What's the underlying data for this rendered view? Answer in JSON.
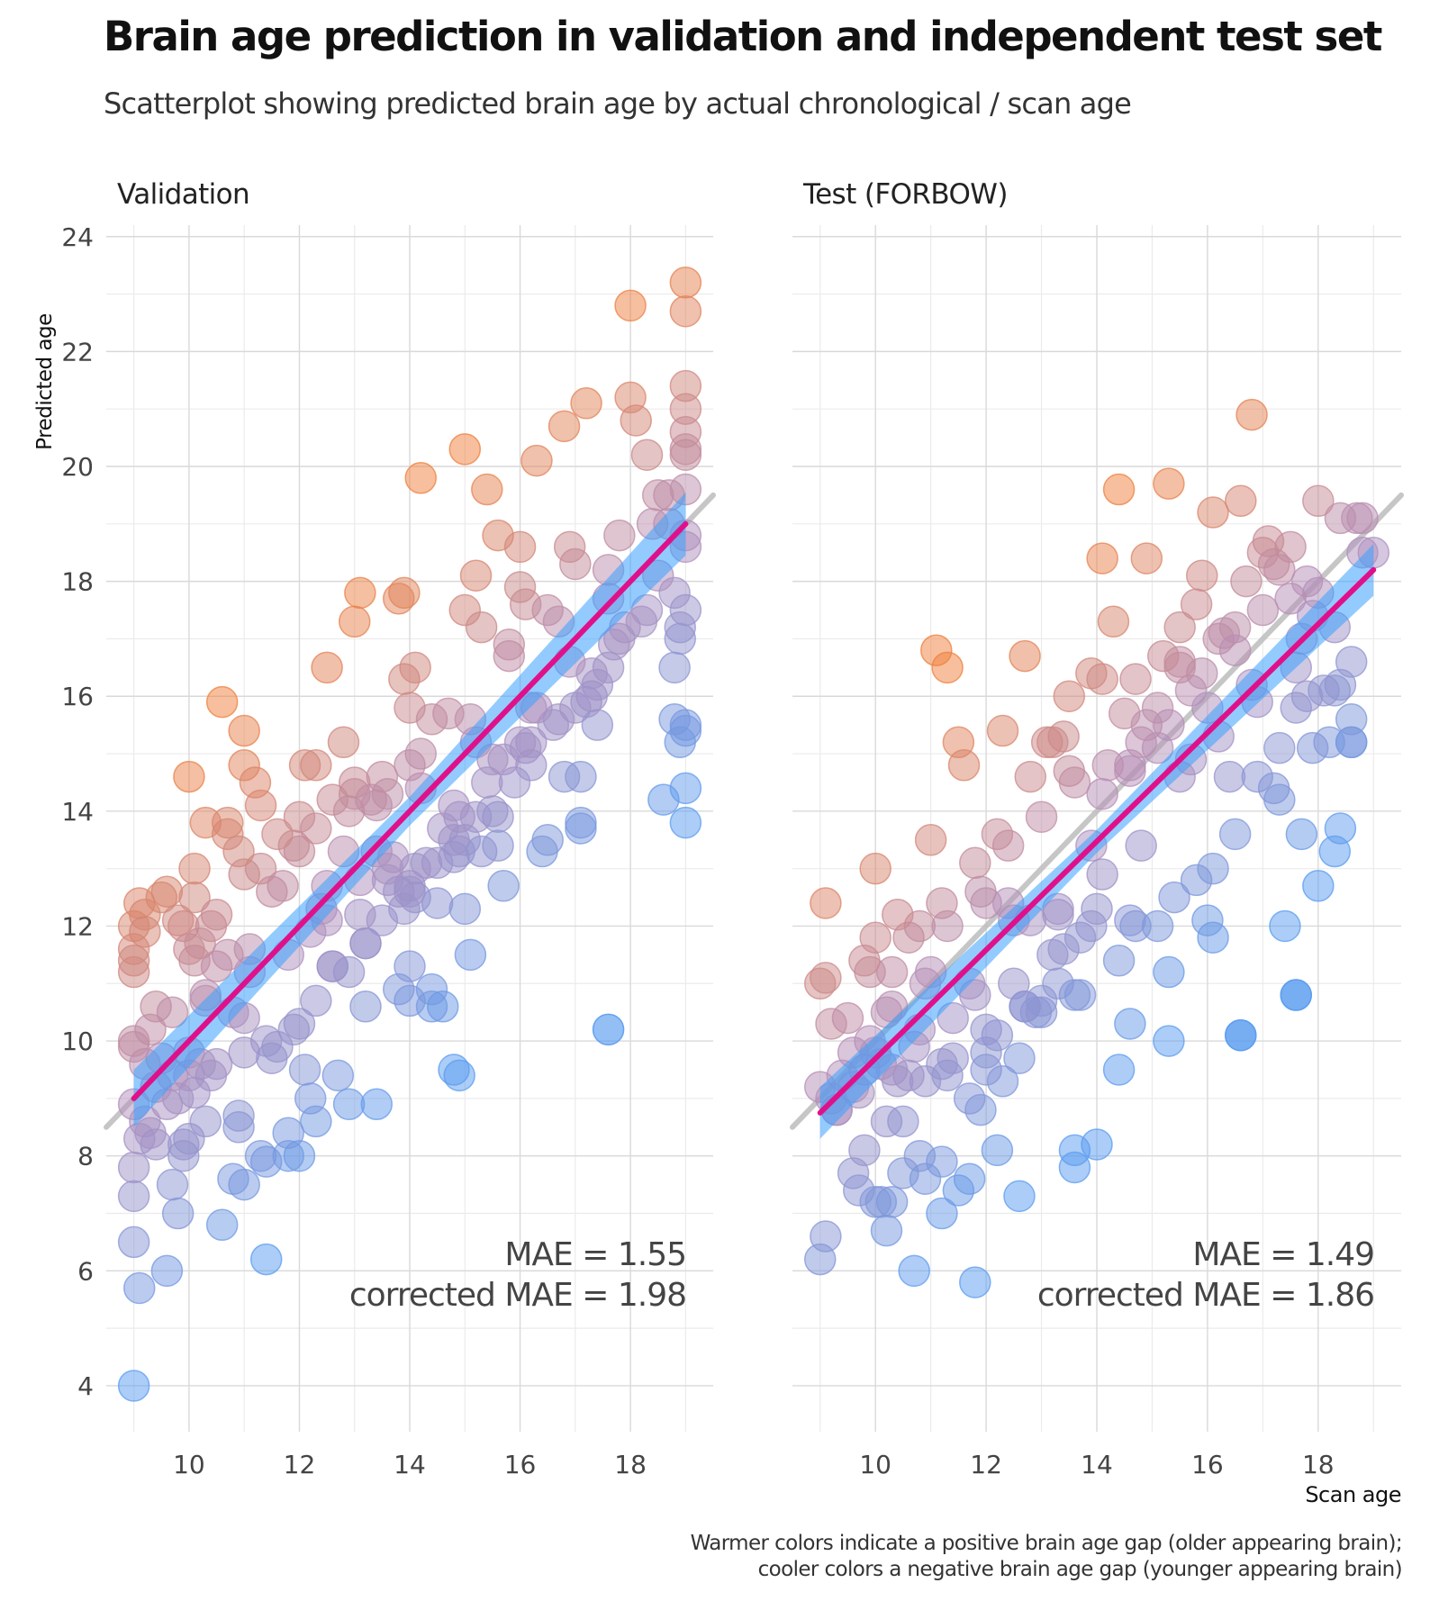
{
  "header": {
    "title": "Brain age prediction in validation and independent test set",
    "subtitle": "Scatterplot showing predicted brain age by actual chronological / scan age"
  },
  "caption": {
    "line1": "Warmer colors indicate a positive brain age gap (older appearing brain);",
    "line2": "cooler colors a negative brain age gap (younger appearing brain)"
  },
  "colors": {
    "warm": "#ef7f3c",
    "mid": "#b48fba",
    "cool": "#5a9cf0",
    "fit_line": "#e0108a",
    "ribbon": "#3aa0ff",
    "identity_line": "#bdbdbd",
    "grid": "#d9d9d9"
  },
  "chart_data": [
    {
      "type": "scatter",
      "panel": "Validation",
      "xlabel": "",
      "ylabel": "Predicted age",
      "xlim": [
        8.5,
        19.5
      ],
      "ylim": [
        3.2,
        24.2
      ],
      "x_ticks": [
        10,
        12,
        14,
        16,
        18
      ],
      "y_ticks": [
        4,
        6,
        8,
        10,
        12,
        14,
        16,
        18,
        20,
        22,
        24
      ],
      "grid": true,
      "identity_line": true,
      "fit": {
        "x": [
          9,
          19
        ],
        "y": [
          9.0,
          19.0
        ],
        "band_halfwidth": [
          0.5,
          0.25,
          0.55
        ]
      },
      "annotation": {
        "mae": "MAE = 1.55",
        "corrected": "corrected MAE = 1.98"
      },
      "x": [
        9.0,
        9.0,
        9.0,
        9.0,
        9.0,
        9.0,
        9.0,
        9.0,
        9.0,
        9.1,
        9.1,
        9.1,
        9.2,
        9.2,
        9.4,
        9.4,
        9.6,
        9.6,
        9.7,
        9.7,
        9.8,
        9.9,
        9.9,
        10.0,
        10.0,
        10.0,
        10.1,
        10.1,
        10.3,
        10.3,
        10.4,
        10.5,
        10.6,
        10.6,
        10.8,
        10.9,
        11.0,
        11.0,
        11.0,
        11.1,
        11.3,
        11.4,
        11.6,
        11.8,
        12.0,
        12.1,
        12.3,
        12.5,
        12.6,
        12.8,
        13.0,
        13.1,
        13.2,
        13.4,
        13.6,
        13.8,
        13.9,
        14.0,
        14.0,
        14.1,
        14.2,
        14.4,
        14.6,
        14.8,
        14.9,
        15.0,
        15.0,
        15.2,
        15.4,
        15.6,
        15.8,
        16.0,
        16.1,
        16.3,
        16.5,
        16.8,
        17.0,
        17.2,
        17.4,
        17.6,
        18.0,
        18.0,
        18.1,
        18.3,
        18.5,
        18.7,
        18.9,
        19.0,
        19.0,
        19.0,
        19.0,
        19.0,
        19.0,
        19.0,
        19.0,
        9.2,
        9.4,
        9.5,
        9.8,
        10.0,
        10.2,
        10.4,
        10.8,
        11.0,
        11.4,
        11.9,
        12.0,
        12.3,
        12.6,
        12.9,
        13.2,
        13.5,
        13.9,
        14.1,
        14.5,
        14.9,
        15.2,
        15.5,
        15.9,
        16.2,
        16.6,
        17.0,
        17.3,
        17.7,
        18.2,
        18.8,
        9.6,
        10.1,
        10.5,
        11.0,
        11.5,
        12.1,
        12.7,
        13.2,
        13.8,
        14.4,
        15.0,
        15.6,
        16.2,
        16.8,
        17.4,
        18.3,
        18.9,
        9.3,
        9.9,
        10.3,
        10.9,
        11.3,
        11.8,
        12.2,
        12.9,
        13.4,
        14.0,
        14.6,
        15.1,
        15.7,
        16.4,
        17.1,
        18.6,
        18.9,
        19.0,
        19.0,
        19.0,
        12.2,
        12.5,
        13.1,
        13.7,
        14.0,
        15.0,
        15.6,
        16.5,
        17.1,
        11.5,
        12.0,
        12.6,
        13.0,
        13.4,
        14.1,
        14.8,
        15.3,
        16.2,
        17.2,
        17.8,
        10.7,
        11.2,
        11.9,
        12.3,
        13.0,
        13.9,
        14.4,
        15.5,
        16.0,
        16.9,
        18.7,
        19.0,
        9.5,
        10.1,
        10.7,
        11.3,
        12.0,
        12.8,
        13.6,
        14.2,
        15.1,
        15.8,
        16.7,
        17.6,
        18.4,
        9.0,
        9.2,
        9.8,
        10.2,
        10.5,
        11.0,
        11.7,
        12.3,
        12.9,
        13.5,
        14.0,
        14.7,
        15.3,
        16.0,
        16.9,
        17.8,
        10.0,
        10.9,
        11.6,
        12.4,
        13.3,
        14.2,
        14.8,
        15.2,
        15.7,
        16.3,
        17.6,
        18.8,
        19.0,
        19.0,
        19.0,
        18.8,
        17.1,
        14.5,
        14.8,
        14.0,
        13.6,
        11.4,
        9.0,
        9.3,
        9.7,
        10.3,
        10.7,
        11.1,
        11.8,
        12.5,
        13.1,
        13.8,
        14.3,
        14.9,
        15.4,
        16.1,
        16.7,
        17.3,
        17.9,
        18.5
      ],
      "y": [
        4.0,
        6.5,
        7.3,
        7.8,
        8.9,
        9.9,
        11.2,
        11.6,
        12.0,
        5.7,
        8.3,
        12.4,
        8.6,
        12.2,
        8.2,
        10.6,
        6.0,
        12.6,
        7.5,
        10.5,
        7.0,
        8.0,
        12.0,
        8.3,
        9.8,
        14.6,
        11.4,
        12.5,
        10.7,
        13.8,
        12.0,
        11.3,
        6.8,
        15.9,
        7.6,
        8.7,
        7.5,
        14.8,
        15.4,
        11.6,
        14.1,
        6.2,
        9.9,
        8.0,
        8.0,
        14.8,
        8.6,
        16.5,
        11.3,
        15.2,
        17.3,
        17.8,
        11.7,
        13.3,
        14.3,
        17.7,
        17.8,
        11.3,
        15.8,
        16.5,
        19.8,
        10.6,
        13.7,
        9.5,
        9.4,
        20.3,
        17.5,
        18.1,
        19.6,
        18.8,
        16.9,
        18.6,
        17.6,
        20.1,
        17.5,
        20.7,
        18.3,
        21.1,
        16.2,
        17.7,
        22.8,
        21.2,
        20.8,
        20.2,
        19.5,
        19.0,
        17.2,
        23.2,
        22.7,
        21.4,
        21.0,
        20.6,
        20.3,
        20.2,
        19.6,
        9.6,
        9.2,
        9.7,
        9.0,
        9.4,
        9.6,
        9.4,
        10.5,
        10.4,
        10.0,
        10.2,
        10.3,
        10.7,
        11.3,
        11.2,
        11.7,
        12.1,
        12.3,
        12.5,
        13.1,
        13.3,
        13.9,
        14.0,
        14.5,
        14.8,
        15.5,
        15.8,
        16.4,
        16.9,
        17.3,
        17.8,
        8.9,
        9.1,
        9.6,
        9.8,
        9.7,
        9.5,
        9.4,
        10.6,
        10.9,
        10.9,
        13.5,
        13.9,
        15.2,
        14.6,
        15.5,
        17.5,
        17.0,
        8.4,
        8.2,
        8.6,
        8.5,
        8.0,
        8.4,
        9.0,
        8.9,
        8.9,
        10.7,
        10.6,
        11.5,
        12.7,
        13.3,
        13.8,
        14.2,
        15.2,
        15.5,
        14.4,
        13.8,
        11.9,
        12.7,
        12.8,
        13.2,
        12.7,
        12.3,
        13.4,
        13.5,
        13.7,
        12.6,
        13.3,
        14.2,
        14.3,
        14.1,
        13.0,
        13.5,
        13.3,
        15.8,
        15.9,
        17.0,
        13.8,
        14.5,
        13.4,
        14.8,
        14.5,
        16.3,
        15.6,
        14.9,
        15.2,
        16.6,
        19.5,
        18.8,
        12.5,
        13.0,
        13.6,
        13.0,
        13.9,
        13.3,
        12.8,
        14.4,
        15.6,
        16.7,
        17.3,
        18.2,
        19.0,
        11.4,
        11.9,
        12.1,
        11.7,
        12.2,
        12.9,
        12.7,
        13.7,
        14.0,
        14.6,
        14.8,
        15.7,
        17.2,
        17.9,
        18.6,
        18.8,
        11.6,
        13.3,
        13.6,
        12.3,
        14.2,
        15.0,
        14.1,
        15.2,
        14.9,
        15.8,
        16.5,
        15.6,
        15.4,
        18.6,
        17.5,
        16.5,
        14.6,
        12.4,
        13.2,
        12.6,
        13.0,
        7.9,
        10.0,
        10.2,
        9.4,
        10.8,
        11.5,
        11.2,
        11.5,
        12.1,
        12.2,
        12.6,
        13.1,
        13.9,
        14.5,
        15.1,
        15.6,
        16.0,
        17.2,
        18.1
      ],
      "gap_outliers": [
        [
          17.6,
          10.2
        ]
      ]
    },
    {
      "type": "scatter",
      "panel": "Test (FORBOW)",
      "xlabel": "Scan age",
      "ylabel": "",
      "xlim": [
        8.5,
        19.5
      ],
      "ylim": [
        3.2,
        24.2
      ],
      "x_ticks": [
        10,
        12,
        14,
        16,
        18
      ],
      "y_ticks": [
        4,
        6,
        8,
        10,
        12,
        14,
        16,
        18,
        20,
        22,
        24
      ],
      "grid": true,
      "identity_line": true,
      "fit": {
        "x": [
          9,
          19
        ],
        "y": [
          8.75,
          18.2
        ],
        "band_halfwidth": [
          0.45,
          0.2,
          0.45
        ]
      },
      "annotation": {
        "mae": "MAE = 1.49",
        "corrected": "corrected MAE = 1.86"
      },
      "x": [
        9.0,
        9.0,
        9.0,
        9.1,
        9.1,
        9.2,
        9.3,
        9.6,
        9.7,
        9.8,
        10.0,
        10.0,
        10.1,
        10.2,
        10.3,
        10.5,
        10.7,
        10.9,
        11.1,
        11.2,
        11.3,
        11.5,
        11.7,
        11.8,
        12.0,
        12.2,
        12.4,
        12.6,
        12.8,
        13.0,
        13.2,
        13.4,
        13.7,
        13.9,
        14.0,
        14.1,
        14.4,
        14.6,
        14.9,
        15.1,
        15.3,
        15.5,
        15.7,
        15.9,
        16.1,
        16.4,
        16.6,
        16.8,
        17.0,
        17.3,
        17.5,
        17.8,
        18.0,
        18.2,
        18.4,
        18.6,
        18.8,
        19.0,
        9.1,
        9.4,
        9.6,
        9.9,
        10.2,
        10.5,
        10.8,
        11.2,
        11.5,
        11.9,
        12.3,
        12.7,
        13.1,
        13.5,
        13.9,
        14.3,
        14.7,
        15.1,
        15.5,
        15.9,
        16.3,
        16.7,
        17.1,
        17.5,
        17.9,
        18.3,
        18.7,
        9.3,
        9.7,
        10.0,
        10.4,
        10.9,
        11.4,
        12.0,
        12.6,
        13.3,
        14.0,
        14.7,
        15.4,
        16.1,
        16.9,
        17.6,
        18.4,
        9.5,
        9.9,
        10.3,
        10.8,
        11.3,
        11.9,
        12.5,
        13.2,
        13.9,
        14.6,
        15.3,
        16.0,
        16.8,
        17.7,
        18.6,
        10.0,
        10.6,
        11.2,
        11.8,
        12.4,
        13.0,
        13.6,
        14.2,
        14.8,
        15.5,
        16.2,
        17.0,
        17.8,
        9.8,
        10.4,
        11.0,
        11.6,
        12.2,
        12.8,
        13.5,
        14.1,
        14.5,
        15.2,
        15.8,
        16.5,
        17.2,
        18.0,
        18.8,
        9.2,
        9.8,
        10.3,
        10.8,
        11.4,
        12.0,
        12.7,
        13.3,
        13.6,
        13.6,
        14.4,
        15.3,
        16.6,
        17.6,
        17.4,
        17.3,
        17.7,
        18.0,
        18.3,
        18.4,
        18.6,
        16.1,
        16.0,
        15.3,
        14.6,
        14.6,
        13.6,
        12.9,
        12.2,
        11.8,
        11.0,
        10.3,
        10.6,
        11.2,
        11.7,
        12.3,
        13.0,
        13.7,
        14.4,
        15.1,
        15.8,
        16.5,
        17.2,
        17.9,
        18.6,
        9.6,
        10.1,
        10.7,
        11.3,
        12.0,
        12.7,
        13.4,
        14.1,
        14.8,
        15.5,
        16.2,
        16.9,
        17.6,
        18.3,
        10.2,
        10.9,
        11.7,
        12.5,
        13.3,
        14.1,
        14.9,
        15.7,
        16.5,
        17.3,
        18.1
      ],
      "y": [
        6.2,
        9.2,
        11.0,
        6.6,
        12.4,
        10.3,
        8.8,
        7.7,
        7.4,
        8.1,
        7.2,
        13.0,
        7.2,
        6.7,
        7.2,
        7.7,
        6.0,
        7.6,
        16.8,
        7.0,
        16.5,
        7.4,
        7.6,
        5.8,
        12.4,
        8.1,
        12.4,
        7.3,
        12.1,
        10.5,
        15.2,
        15.3,
        11.8,
        12.0,
        8.2,
        18.4,
        19.6,
        14.7,
        18.4,
        15.1,
        19.7,
        17.2,
        16.1,
        16.4,
        19.2,
        14.6,
        19.4,
        20.9,
        18.5,
        18.2,
        18.6,
        16.0,
        17.8,
        15.2,
        19.1,
        15.2,
        19.1,
        18.5,
        11.1,
        9.4,
        9.8,
        10.0,
        8.6,
        8.6,
        8.0,
        7.9,
        15.2,
        8.8,
        15.4,
        16.7,
        15.2,
        16.0,
        16.4,
        17.3,
        16.3,
        15.8,
        16.6,
        18.1,
        17.1,
        18.0,
        18.7,
        17.7,
        17.4,
        16.1,
        19.1,
        8.8,
        9.1,
        9.8,
        9.3,
        9.3,
        9.7,
        9.8,
        9.7,
        12.2,
        12.3,
        12.0,
        12.5,
        13.0,
        14.6,
        15.8,
        16.2,
        10.4,
        11.2,
        11.2,
        12.0,
        12.0,
        12.6,
        11.0,
        11.5,
        13.4,
        14.8,
        15.5,
        15.8,
        16.2,
        17.0,
        16.6,
        11.8,
        11.8,
        12.4,
        13.1,
        13.4,
        13.9,
        14.5,
        14.8,
        15.2,
        16.5,
        17.0,
        17.5,
        18.0,
        11.4,
        12.2,
        13.5,
        14.8,
        13.6,
        14.6,
        14.7,
        16.3,
        15.7,
        16.7,
        17.6,
        17.2,
        18.3,
        19.4,
        18.5,
        9.0,
        9.5,
        9.5,
        10.2,
        10.4,
        10.2,
        10.6,
        11.0,
        7.8,
        8.1,
        9.5,
        10.0,
        10.1,
        10.8,
        12.0,
        14.2,
        13.6,
        12.7,
        13.3,
        13.7,
        15.2,
        11.8,
        12.1,
        11.2,
        10.3,
        12.1,
        10.8,
        10.5,
        10.1,
        10.8,
        11.2,
        10.6,
        9.4,
        9.6,
        9.0,
        9.3,
        10.7,
        10.8,
        11.4,
        12.0,
        12.8,
        13.6,
        14.4,
        15.1,
        15.6,
        9.2,
        9.6,
        9.9,
        9.4,
        9.5,
        10.6,
        11.6,
        12.9,
        13.4,
        14.6,
        15.3,
        15.9,
        16.5,
        17.2,
        10.5,
        11.0,
        11.0,
        12.1,
        12.3,
        14.3,
        15.5,
        14.9,
        16.8,
        15.1,
        16.1
      ],
      "gap_outliers": [
        [
          17.6,
          10.8
        ],
        [
          16.6,
          10.1
        ]
      ]
    }
  ]
}
